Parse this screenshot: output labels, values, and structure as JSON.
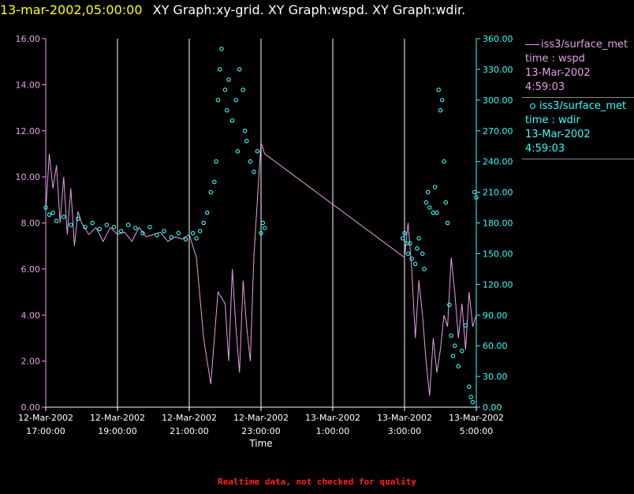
{
  "header": {
    "timestamp": "13-mar-2002,05:00:00",
    "titles": "XY Graph:xy-grid.  XY Graph:wspd.  XY Graph:wdir."
  },
  "legend": {
    "wspd": {
      "source": "iss3/surface_met",
      "field": "time : wspd",
      "date": "13-Mar-2002",
      "time": "4:59:03"
    },
    "wdir": {
      "source": "iss3/surface_met",
      "field": "time : wdir",
      "date": "13-Mar-2002",
      "time": "4:59:03"
    }
  },
  "footer": "Realtime data, not checked for quality",
  "colors": {
    "wspd": "#e89ee8",
    "wdir": "#33ffff",
    "grid": "#ffffff",
    "timestamp": "#ffff00",
    "footer": "#ff2222"
  },
  "chart_data": {
    "type": "line",
    "xlabel": "Time",
    "xlim": [
      0,
      12
    ],
    "x_ticks": [
      {
        "x": 0,
        "line1": "12-Mar-2002",
        "line2": "17:00:00"
      },
      {
        "x": 2,
        "line1": "12-Mar-2002",
        "line2": "19:00:00"
      },
      {
        "x": 4,
        "line1": "12-Mar-2002",
        "line2": "21:00:00"
      },
      {
        "x": 6,
        "line1": "12-Mar-2002",
        "line2": "23:00:00"
      },
      {
        "x": 8,
        "line1": "13-Mar-2002",
        "line2": "1:00:00"
      },
      {
        "x": 10,
        "line1": "13-Mar-2002",
        "line2": "3:00:00"
      },
      {
        "x": 12,
        "line1": "13-Mar-2002",
        "line2": "5:00:00"
      }
    ],
    "left_axis": {
      "min": 0,
      "max": 16,
      "ticks": [
        "0.00",
        "2.00",
        "4.00",
        "6.00",
        "8.00",
        "10.00",
        "12.00",
        "14.00",
        "16.00"
      ]
    },
    "right_axis": {
      "min": 0,
      "max": 360,
      "ticks": [
        "0.00",
        "30.00",
        "60.00",
        "90.00",
        "120.00",
        "150.00",
        "180.00",
        "210.00",
        "240.00",
        "270.00",
        "300.00",
        "330.00",
        "360.00"
      ]
    },
    "grid": "vertical",
    "series": [
      {
        "name": "iss3/surface_met time : wspd",
        "axis": "left",
        "style": "line",
        "x": [
          0.0,
          0.1,
          0.2,
          0.3,
          0.4,
          0.5,
          0.6,
          0.7,
          0.8,
          0.9,
          1.0,
          1.2,
          1.4,
          1.6,
          1.8,
          2.0,
          2.2,
          2.4,
          2.6,
          2.8,
          3.0,
          3.2,
          3.4,
          3.6,
          3.8,
          4.0,
          4.2,
          4.4,
          4.6,
          4.8,
          5.0,
          5.1,
          5.2,
          5.3,
          5.4,
          5.5,
          5.6,
          5.7,
          5.8,
          5.9,
          6.0,
          6.1,
          10.0,
          10.1,
          10.2,
          10.3,
          10.4,
          10.5,
          10.6,
          10.7,
          10.8,
          10.9,
          11.0,
          11.1,
          11.2,
          11.3,
          11.4,
          11.5,
          11.6,
          11.7,
          11.8,
          11.9,
          12.0
        ],
        "values": [
          8.5,
          11.0,
          9.5,
          10.5,
          8.0,
          10.0,
          7.5,
          9.5,
          7.0,
          8.5,
          8.0,
          7.5,
          7.8,
          7.2,
          7.8,
          7.5,
          7.6,
          7.2,
          7.8,
          7.4,
          7.5,
          7.6,
          7.2,
          7.4,
          7.3,
          7.5,
          6.5,
          3.0,
          1.0,
          5.0,
          4.5,
          2.0,
          6.0,
          3.5,
          1.5,
          5.5,
          3.5,
          2.0,
          6.5,
          9.0,
          11.5,
          11.0,
          6.5,
          8.0,
          6.0,
          3.0,
          5.5,
          4.0,
          2.0,
          0.5,
          3.0,
          1.5,
          2.5,
          4.0,
          3.5,
          6.5,
          5.0,
          3.0,
          4.5,
          2.5,
          5.0,
          3.5,
          4.0
        ]
      },
      {
        "name": "iss3/surface_met time : wdir",
        "axis": "right",
        "style": "scatter",
        "x": [
          0.0,
          0.1,
          0.2,
          0.3,
          0.5,
          0.7,
          0.9,
          1.1,
          1.3,
          1.5,
          1.7,
          1.9,
          2.1,
          2.3,
          2.5,
          2.7,
          2.9,
          3.1,
          3.3,
          3.5,
          3.7,
          3.9,
          4.1,
          4.2,
          4.3,
          4.4,
          4.5,
          4.6,
          4.7,
          4.75,
          4.8,
          4.85,
          4.9,
          5.0,
          5.05,
          5.1,
          5.2,
          5.3,
          5.35,
          5.4,
          5.5,
          5.55,
          5.6,
          5.7,
          5.8,
          5.9,
          6.0,
          6.05,
          6.1,
          9.95,
          10.0,
          10.05,
          10.1,
          10.15,
          10.2,
          10.3,
          10.35,
          10.4,
          10.5,
          10.55,
          10.6,
          10.65,
          10.7,
          10.8,
          10.85,
          10.9,
          10.95,
          11.0,
          11.05,
          11.1,
          11.15,
          11.2,
          11.25,
          11.3,
          11.35,
          11.4,
          11.5,
          11.6,
          11.7,
          11.8,
          11.85,
          11.9,
          11.95,
          12.0
        ],
        "values": [
          195,
          188,
          190,
          182,
          186,
          178,
          184,
          176,
          180,
          174,
          178,
          176,
          172,
          178,
          175,
          170,
          176,
          168,
          172,
          166,
          170,
          164,
          170,
          165,
          172,
          180,
          190,
          210,
          220,
          240,
          300,
          330,
          350,
          310,
          290,
          320,
          280,
          300,
          250,
          330,
          310,
          270,
          260,
          240,
          230,
          250,
          170,
          180,
          175,
          165,
          170,
          160,
          150,
          160,
          145,
          140,
          155,
          165,
          150,
          135,
          200,
          210,
          195,
          190,
          215,
          190,
          310,
          290,
          300,
          240,
          200,
          180,
          100,
          70,
          50,
          60,
          40,
          55,
          80,
          20,
          10,
          5,
          210,
          205
        ]
      }
    ]
  }
}
